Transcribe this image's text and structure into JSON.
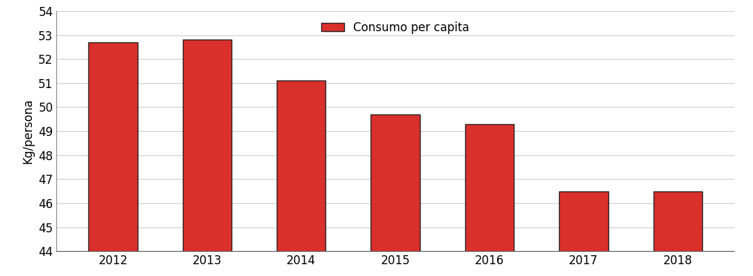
{
  "chart_data": {
    "type": "bar",
    "y_label": "Kg/persona",
    "categories": [
      "2012",
      "2013",
      "2014",
      "2015",
      "2016",
      "2017",
      "2018"
    ],
    "series": [
      {
        "name": "Consumo per capita",
        "color": "#d9302c",
        "values": [
          52.7,
          52.8,
          51.1,
          49.7,
          49.3,
          46.5,
          46.5
        ]
      }
    ],
    "ylim": [
      44,
      54
    ],
    "yticks": [
      44,
      45,
      46,
      47,
      48,
      49,
      50,
      51,
      52,
      53,
      54
    ],
    "grid": true,
    "legend": "upper center"
  }
}
